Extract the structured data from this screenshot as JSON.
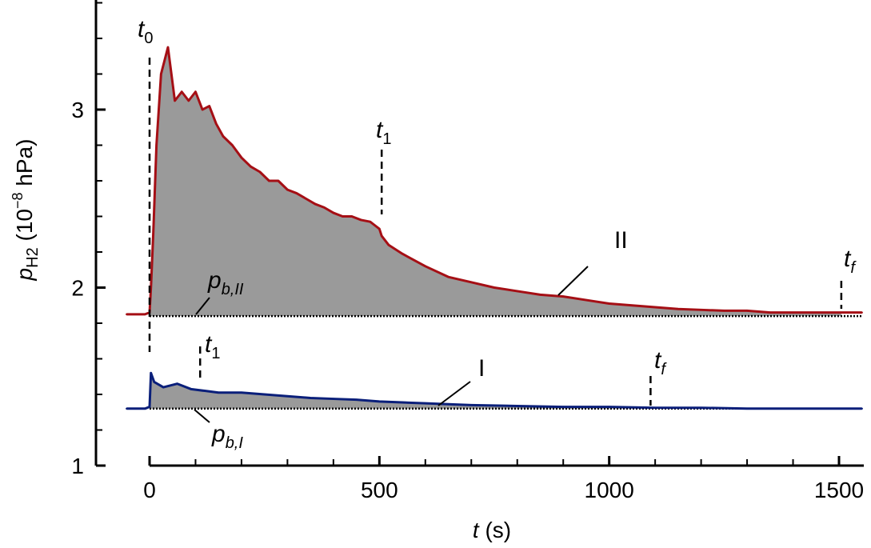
{
  "chart_data": {
    "type": "area",
    "xlabel": {
      "var": "t",
      "unit": " (s)"
    },
    "ylabel": {
      "var": "p",
      "sub": "H2",
      "unit": " (10",
      "exp": "−8",
      "unit_end": " hPa)"
    },
    "xlim": [
      -55,
      1550
    ],
    "ylim": [
      0.98,
      3.65
    ],
    "xticks": [
      0,
      500,
      1000,
      1500
    ],
    "xtick_labels": [
      "0",
      "500",
      "1000",
      "1500"
    ],
    "yticks": [
      1,
      2,
      3
    ],
    "ytick_labels": [
      "1",
      "2",
      "3"
    ],
    "series": [
      {
        "name": "II",
        "color": "#a50f15",
        "baseline": 1.84,
        "t0": 0,
        "t1": 505,
        "tf": 1505,
        "x": [
          -50,
          -10,
          0,
          3,
          8,
          15,
          25,
          40,
          55,
          70,
          85,
          100,
          115,
          130,
          145,
          160,
          180,
          200,
          220,
          240,
          260,
          280,
          300,
          320,
          340,
          360,
          380,
          400,
          420,
          440,
          460,
          480,
          490,
          500,
          505,
          520,
          550,
          600,
          650,
          700,
          750,
          800,
          850,
          900,
          950,
          1000,
          1050,
          1100,
          1150,
          1200,
          1250,
          1300,
          1350,
          1400,
          1450,
          1500,
          1550
        ],
        "y": [
          1.85,
          1.85,
          1.86,
          2.0,
          2.3,
          2.8,
          3.2,
          3.35,
          3.05,
          3.1,
          3.05,
          3.1,
          3.0,
          3.02,
          2.92,
          2.85,
          2.8,
          2.73,
          2.68,
          2.65,
          2.6,
          2.6,
          2.55,
          2.53,
          2.5,
          2.47,
          2.45,
          2.42,
          2.4,
          2.4,
          2.38,
          2.37,
          2.35,
          2.33,
          2.29,
          2.24,
          2.19,
          2.12,
          2.06,
          2.03,
          2.0,
          1.98,
          1.96,
          1.95,
          1.93,
          1.91,
          1.9,
          1.89,
          1.88,
          1.875,
          1.87,
          1.87,
          1.86,
          1.86,
          1.86,
          1.86,
          1.86
        ]
      },
      {
        "name": "I",
        "color": "#0a1f7a",
        "baseline": 1.32,
        "t0": 0,
        "t1": 110,
        "tf": 1090,
        "x": [
          -50,
          -10,
          0,
          3,
          10,
          30,
          60,
          90,
          120,
          150,
          200,
          250,
          300,
          350,
          400,
          450,
          500,
          550,
          600,
          650,
          700,
          800,
          900,
          1000,
          1100,
          1200,
          1300,
          1400,
          1500,
          1550
        ],
        "y": [
          1.32,
          1.32,
          1.33,
          1.52,
          1.47,
          1.44,
          1.46,
          1.43,
          1.42,
          1.41,
          1.41,
          1.4,
          1.39,
          1.38,
          1.375,
          1.37,
          1.36,
          1.355,
          1.35,
          1.345,
          1.34,
          1.335,
          1.33,
          1.33,
          1.325,
          1.325,
          1.32,
          1.32,
          1.32,
          1.32
        ]
      }
    ],
    "annotations": {
      "t0": {
        "main": "t",
        "sub": "0"
      },
      "t1": {
        "main": "t",
        "sub": "1"
      },
      "tf": {
        "main": "t",
        "sub": "f"
      },
      "pb_II": {
        "main": "p",
        "sub": "b,II"
      },
      "pb_I": {
        "main": "p",
        "sub": "b,I"
      },
      "label_II": "II",
      "label_I": "I"
    },
    "fill_color": "#9a9a9a",
    "grid": false,
    "legend": "none"
  }
}
